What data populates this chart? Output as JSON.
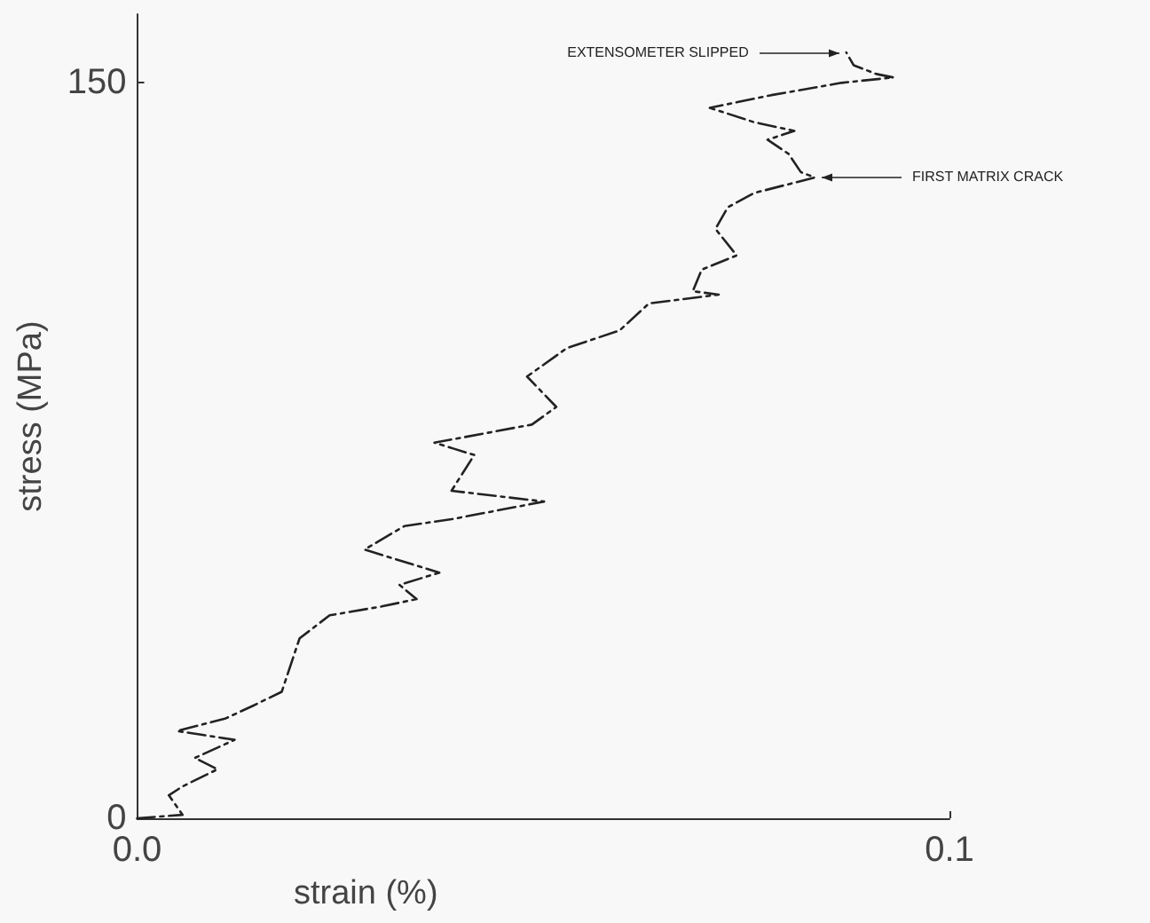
{
  "chart_data": {
    "type": "line",
    "xlabel": "strain (%)",
    "ylabel": "stress (MPa)",
    "xlim": [
      0,
      0.1
    ],
    "ylim": [
      0,
      164
    ],
    "xticks": [
      {
        "value": 0,
        "label": "0.0"
      },
      {
        "value": 0.1,
        "label": "0.1"
      }
    ],
    "yticks": [
      0,
      150
    ],
    "grid": false,
    "marker": "none",
    "line_style": "dashed",
    "series": [
      {
        "color": "#222222",
        "x": [
          0,
          0.0056,
          0.0039,
          0.0056,
          0.0099,
          0.0071,
          0.012,
          0.0049,
          0.0108,
          0.0142,
          0.0178,
          0.02,
          0.0237,
          0.0301,
          0.0344,
          0.0323,
          0.0372,
          0.028,
          0.0329,
          0.0387,
          0.0501,
          0.0387,
          0.0415,
          0.0366,
          0.0486,
          0.0516,
          0.048,
          0.0529,
          0.0594,
          0.063,
          0.0716,
          0.0684,
          0.0695,
          0.0738,
          0.0712,
          0.0727,
          0.0759,
          0.0834,
          0.0817,
          0.0802,
          0.0776,
          0.0809,
          0.0759,
          0.0705,
          0.0781,
          0.0867,
          0.0931,
          0.091,
          0.0882,
          0.0873
        ],
        "values": [
          0,
          0.7,
          4.7,
          6.5,
          10,
          12.3,
          16,
          17.8,
          20.3,
          22.9,
          25.8,
          36.7,
          41.4,
          43.2,
          44.7,
          47.6,
          50.1,
          54.8,
          59.6,
          61,
          64.6,
          66.8,
          74.1,
          76.6,
          80.3,
          83.9,
          90.1,
          95.9,
          99.5,
          105,
          106.8,
          107.5,
          111.9,
          114.8,
          120.2,
          124.6,
          127.5,
          130.7,
          131.8,
          135.5,
          138.4,
          140.2,
          142,
          144.9,
          147.5,
          150,
          151.1,
          151.8,
          153.6,
          156.2
        ]
      }
    ],
    "annotations": [
      {
        "text": "EXTENSOMETER SLIPPED",
        "x": 0.0873,
        "y": 156.2
      },
      {
        "text": "FIRST MATRIX CRACK",
        "x": 0.0834,
        "y": 130.7
      }
    ]
  }
}
